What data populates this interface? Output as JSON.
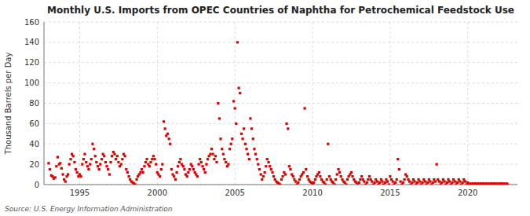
{
  "chart_data": {
    "type": "scatter",
    "title": "Monthly U.S. Imports from OPEC Countries of Naphtha for Petrochemical Feedstock Use",
    "y_label": "Thousand Barrels per Day",
    "source": "Source: U.S. Energy Information Administration",
    "color": "#dd0000",
    "marker": "square",
    "grid": true,
    "xlim": [
      1992.7,
      2023.2
    ],
    "xticks": [
      1995,
      2000,
      2005,
      2010,
      2015,
      2020
    ],
    "ylim": [
      0,
      160
    ],
    "yticks": [
      0,
      20,
      40,
      60,
      80,
      100,
      120,
      140,
      160
    ],
    "x": [
      1993.0,
      1993.08,
      1993.17,
      1993.25,
      1993.33,
      1993.42,
      1993.5,
      1993.58,
      1993.67,
      1993.75,
      1993.83,
      1993.92,
      1994.0,
      1994.08,
      1994.17,
      1994.25,
      1994.33,
      1994.42,
      1994.5,
      1994.58,
      1994.67,
      1994.75,
      1994.83,
      1994.92,
      1995.0,
      1995.08,
      1995.17,
      1995.25,
      1995.33,
      1995.42,
      1995.5,
      1995.58,
      1995.67,
      1995.75,
      1995.83,
      1995.92,
      1996.0,
      1996.08,
      1996.17,
      1996.25,
      1996.33,
      1996.42,
      1996.5,
      1996.58,
      1996.67,
      1996.75,
      1996.83,
      1996.92,
      1997.0,
      1997.08,
      1997.17,
      1997.25,
      1997.33,
      1997.42,
      1997.5,
      1997.58,
      1997.67,
      1997.75,
      1997.83,
      1997.92,
      1998.0,
      1998.08,
      1998.17,
      1998.25,
      1998.33,
      1998.42,
      1998.5,
      1998.58,
      1998.67,
      1998.75,
      1998.83,
      1998.92,
      1999.0,
      1999.08,
      1999.17,
      1999.25,
      1999.33,
      1999.42,
      1999.5,
      1999.58,
      1999.67,
      1999.75,
      1999.83,
      1999.92,
      2000.0,
      2000.08,
      2000.17,
      2000.25,
      2000.33,
      2000.42,
      2000.5,
      2000.58,
      2000.67,
      2000.75,
      2000.83,
      2000.92,
      2001.0,
      2001.08,
      2001.17,
      2001.25,
      2001.33,
      2001.42,
      2001.5,
      2001.58,
      2001.67,
      2001.75,
      2001.83,
      2001.92,
      2002.0,
      2002.08,
      2002.17,
      2002.25,
      2002.33,
      2002.42,
      2002.5,
      2002.58,
      2002.67,
      2002.75,
      2002.83,
      2002.92,
      2003.0,
      2003.08,
      2003.17,
      2003.25,
      2003.33,
      2003.42,
      2003.5,
      2003.58,
      2003.67,
      2003.75,
      2003.83,
      2003.92,
      2004.0,
      2004.08,
      2004.17,
      2004.25,
      2004.33,
      2004.42,
      2004.5,
      2004.58,
      2004.67,
      2004.75,
      2004.83,
      2004.92,
      2005.0,
      2005.08,
      2005.17,
      2005.25,
      2005.33,
      2005.42,
      2005.5,
      2005.58,
      2005.67,
      2005.75,
      2005.83,
      2005.92,
      2006.0,
      2006.08,
      2006.17,
      2006.25,
      2006.33,
      2006.42,
      2006.5,
      2006.58,
      2006.67,
      2006.75,
      2006.83,
      2006.92,
      2007.0,
      2007.08,
      2007.17,
      2007.25,
      2007.33,
      2007.42,
      2007.5,
      2007.58,
      2007.67,
      2007.75,
      2007.83,
      2007.92,
      2008.0,
      2008.08,
      2008.17,
      2008.25,
      2008.33,
      2008.42,
      2008.5,
      2008.58,
      2008.67,
      2008.75,
      2008.83,
      2008.92,
      2009.0,
      2009.08,
      2009.17,
      2009.25,
      2009.33,
      2009.42,
      2009.5,
      2009.58,
      2009.67,
      2009.75,
      2009.83,
      2009.92,
      2010.0,
      2010.08,
      2010.17,
      2010.25,
      2010.33,
      2010.42,
      2010.5,
      2010.58,
      2010.67,
      2010.75,
      2010.83,
      2010.92,
      2011.0,
      2011.08,
      2011.17,
      2011.25,
      2011.33,
      2011.42,
      2011.5,
      2011.58,
      2011.67,
      2011.75,
      2011.83,
      2011.92,
      2012.0,
      2012.08,
      2012.17,
      2012.25,
      2012.33,
      2012.42,
      2012.5,
      2012.58,
      2012.67,
      2012.75,
      2012.83,
      2012.92,
      2013.0,
      2013.08,
      2013.17,
      2013.25,
      2013.33,
      2013.42,
      2013.5,
      2013.58,
      2013.67,
      2013.75,
      2013.83,
      2013.92,
      2014.0,
      2014.08,
      2014.17,
      2014.25,
      2014.33,
      2014.42,
      2014.5,
      2014.58,
      2014.67,
      2014.75,
      2014.83,
      2014.92,
      2015.0,
      2015.08,
      2015.17,
      2015.25,
      2015.33,
      2015.42,
      2015.5,
      2015.58,
      2015.67,
      2015.75,
      2015.83,
      2015.92,
      2016.0,
      2016.08,
      2016.17,
      2016.25,
      2016.33,
      2016.42,
      2016.5,
      2016.58,
      2016.67,
      2016.75,
      2016.83,
      2016.92,
      2017.0,
      2017.08,
      2017.17,
      2017.25,
      2017.33,
      2017.42,
      2017.5,
      2017.58,
      2017.67,
      2017.75,
      2017.83,
      2017.92,
      2018.0,
      2018.08,
      2018.17,
      2018.25,
      2018.33,
      2018.42,
      2018.5,
      2018.58,
      2018.67,
      2018.75,
      2018.83,
      2018.92,
      2019.0,
      2019.08,
      2019.17,
      2019.25,
      2019.33,
      2019.42,
      2019.5,
      2019.58,
      2019.67,
      2019.75,
      2019.83,
      2019.92,
      2020.0,
      2020.08,
      2020.17,
      2020.25,
      2020.33,
      2020.42,
      2020.5,
      2020.58,
      2020.67,
      2020.75,
      2020.83,
      2020.92,
      2021.0,
      2021.08,
      2021.17,
      2021.25,
      2021.33,
      2021.42,
      2021.5,
      2021.58,
      2021.67,
      2021.75,
      2021.83,
      2021.92,
      2022.0,
      2022.08,
      2022.17,
      2022.25,
      2022.33,
      2022.42,
      2022.5,
      2022.58
    ],
    "values": [
      21,
      15,
      9,
      8,
      6,
      7,
      18,
      27,
      20,
      21,
      16,
      10,
      5,
      3,
      8,
      10,
      20,
      25,
      30,
      28,
      22,
      15,
      12,
      8,
      10,
      8,
      20,
      25,
      30,
      22,
      18,
      15,
      20,
      25,
      40,
      35,
      28,
      22,
      18,
      15,
      20,
      25,
      30,
      28,
      22,
      18,
      15,
      10,
      22,
      28,
      32,
      30,
      25,
      28,
      22,
      18,
      20,
      25,
      30,
      28,
      15,
      12,
      8,
      5,
      3,
      2,
      1,
      0,
      5,
      8,
      10,
      12,
      15,
      12,
      18,
      22,
      25,
      20,
      18,
      22,
      25,
      28,
      25,
      20,
      12,
      10,
      8,
      15,
      20,
      62,
      55,
      48,
      50,
      45,
      40,
      15,
      10,
      8,
      5,
      12,
      18,
      22,
      25,
      20,
      18,
      15,
      10,
      8,
      12,
      15,
      20,
      18,
      15,
      12,
      10,
      8,
      20,
      25,
      22,
      18,
      15,
      12,
      20,
      25,
      28,
      30,
      35,
      30,
      25,
      28,
      22,
      80,
      65,
      45,
      35,
      30,
      25,
      22,
      18,
      20,
      35,
      40,
      45,
      82,
      75,
      60,
      140,
      95,
      90,
      50,
      45,
      55,
      40,
      35,
      30,
      25,
      65,
      55,
      45,
      35,
      30,
      25,
      20,
      15,
      10,
      5,
      8,
      12,
      18,
      25,
      22,
      18,
      15,
      12,
      8,
      5,
      3,
      2,
      1,
      0,
      5,
      8,
      12,
      10,
      60,
      55,
      18,
      15,
      10,
      8,
      5,
      3,
      0,
      2,
      5,
      8,
      10,
      12,
      75,
      15,
      8,
      5,
      3,
      2,
      0,
      2,
      5,
      8,
      10,
      12,
      8,
      5,
      3,
      2,
      0,
      5,
      40,
      8,
      5,
      3,
      2,
      0,
      5,
      10,
      15,
      12,
      8,
      5,
      3,
      2,
      0,
      5,
      8,
      10,
      12,
      8,
      5,
      3,
      2,
      0,
      2,
      5,
      8,
      5,
      3,
      0,
      2,
      5,
      8,
      5,
      3,
      0,
      2,
      5,
      3,
      0,
      2,
      5,
      3,
      0,
      2,
      5,
      3,
      0,
      8,
      5,
      3,
      0,
      2,
      5,
      25,
      15,
      3,
      0,
      2,
      5,
      10,
      8,
      5,
      3,
      0,
      2,
      5,
      3,
      0,
      2,
      5,
      3,
      0,
      2,
      5,
      3,
      0,
      2,
      5,
      3,
      0,
      2,
      5,
      3,
      20,
      5,
      3,
      0,
      2,
      5,
      3,
      0,
      2,
      5,
      3,
      0,
      2,
      5,
      3,
      0,
      2,
      5,
      3,
      0,
      2,
      5,
      3,
      0,
      2,
      0,
      1,
      0,
      1,
      0,
      1,
      0,
      1,
      0,
      1,
      0,
      1,
      0,
      1,
      0,
      1,
      0,
      1,
      0,
      1,
      0,
      1,
      0,
      1,
      0,
      1,
      0,
      1,
      0,
      1,
      0
    ]
  }
}
